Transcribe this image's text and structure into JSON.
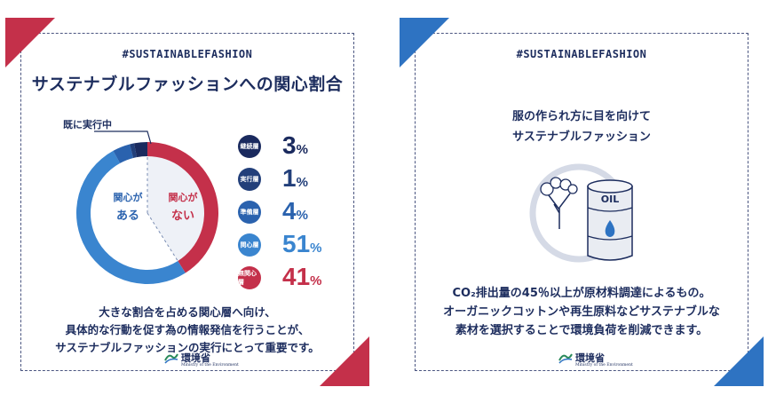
{
  "left_panel": {
    "hashtag": "#SUSTAINABLEFASHION",
    "title": "サステナブルファッションへの関心割合",
    "callout": "既に実行中",
    "label_interested": [
      "関心が",
      "ある"
    ],
    "label_not_interested": [
      "関心が",
      "ない"
    ],
    "description": [
      "大きな割合を占める関心層へ向け、",
      "具体的な行動を促す為の情報発信を行うことが、",
      "サステナブルファッションの実行にとって重要です。"
    ],
    "logo_name": "環境省",
    "logo_sub": "Ministry of the Environment"
  },
  "right_panel": {
    "hashtag": "#SUSTAINABLEFASHION",
    "subtitle": [
      "服の作られ方に目を向けて",
      "サステナブルファッション"
    ],
    "oil_label": "OIL",
    "description": [
      "CO₂排出量の45％以上が原材料調達によるもの。",
      "オーガニックコットンや再生原料などサステナブルな",
      "素材を選択することで環境負荷を削減できます。"
    ],
    "logo_name": "環境省",
    "logo_sub": "Ministry of the Environment"
  },
  "chart_data": {
    "type": "pie",
    "title": "サステナブルファッションへの関心割合",
    "unit": "%",
    "categories": [
      "継続層",
      "実行層",
      "準備層",
      "関心層",
      "無関心層"
    ],
    "values": [
      3,
      1,
      4,
      51,
      41
    ],
    "colors": [
      "#1a2a5e",
      "#223f7a",
      "#2a62ae",
      "#3a85cf",
      "#c4304a"
    ]
  }
}
